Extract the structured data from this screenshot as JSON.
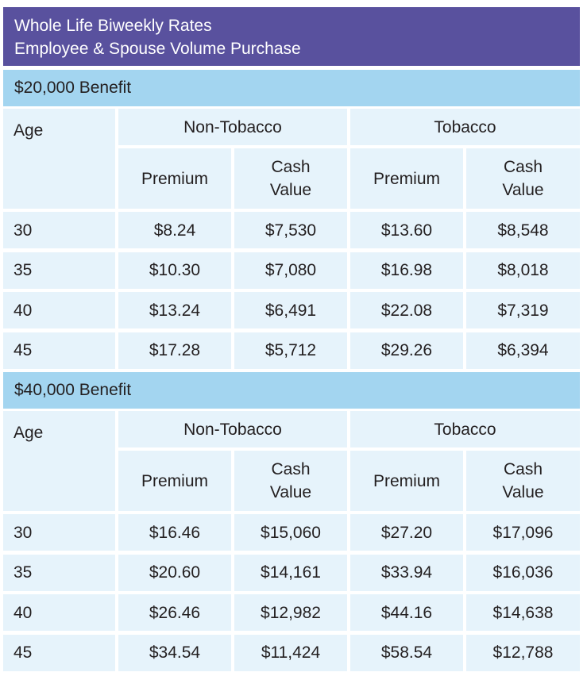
{
  "title": {
    "line1": "Whole Life Biweekly Rates",
    "line2": "Employee & Spouse Volume Purchase"
  },
  "header_labels": {
    "age": "Age",
    "non_tobacco": "Non-Tobacco",
    "tobacco": "Tobacco",
    "premium": "Premium",
    "cash": "Cash",
    "value": "Value"
  },
  "sections": [
    {
      "benefit": "$20,000 Benefit",
      "rows": [
        {
          "age": "30",
          "nt_premium": "$8.24",
          "nt_cash": "$7,530",
          "t_premium": "$13.60",
          "t_cash": "$8,548"
        },
        {
          "age": "35",
          "nt_premium": "$10.30",
          "nt_cash": "$7,080",
          "t_premium": "$16.98",
          "t_cash": "$8,018"
        },
        {
          "age": "40",
          "nt_premium": "$13.24",
          "nt_cash": "$6,491",
          "t_premium": "$22.08",
          "t_cash": "$7,319"
        },
        {
          "age": "45",
          "nt_premium": "$17.28",
          "nt_cash": "$5,712",
          "t_premium": "$29.26",
          "t_cash": "$6,394"
        }
      ]
    },
    {
      "benefit": "$40,000 Benefit",
      "rows": [
        {
          "age": "30",
          "nt_premium": "$16.46",
          "nt_cash": "$15,060",
          "t_premium": "$27.20",
          "t_cash": "$17,096"
        },
        {
          "age": "35",
          "nt_premium": "$20.60",
          "nt_cash": "$14,161",
          "t_premium": "$33.94",
          "t_cash": "$16,036"
        },
        {
          "age": "40",
          "nt_premium": "$26.46",
          "nt_cash": "$12,982",
          "t_premium": "$44.16",
          "t_cash": "$14,638"
        },
        {
          "age": "45",
          "nt_premium": "$34.54",
          "nt_cash": "$11,424",
          "t_premium": "$58.54",
          "t_cash": "$12,788"
        }
      ]
    }
  ],
  "colors": {
    "title_bg": "#59519e",
    "band_bg": "#a3d5f0",
    "cell_bg": "#e6f3fb"
  }
}
